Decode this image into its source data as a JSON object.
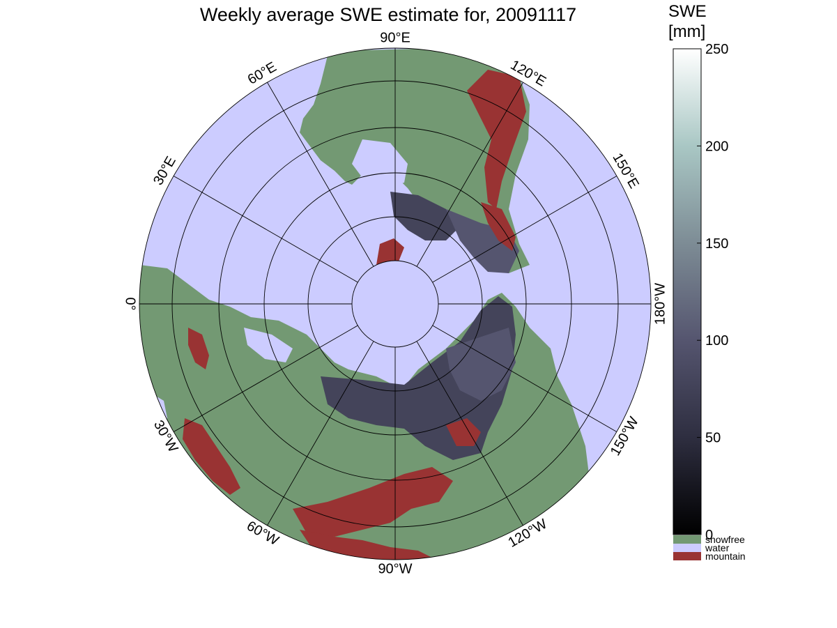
{
  "title": "Weekly average SWE estimate for, 20091117",
  "colorbar": {
    "title_line1": "SWE",
    "title_line2": "[mm]",
    "ticks": [
      "0",
      "50",
      "100",
      "150",
      "200",
      "250"
    ],
    "tick_values": [
      0,
      50,
      100,
      150,
      200,
      250
    ],
    "range": [
      0,
      250
    ],
    "gradient_colors": [
      "#000000",
      "#2e2e40",
      "#55556f",
      "#7d8c95",
      "#a9c7c4",
      "#ffffff"
    ]
  },
  "legend": [
    {
      "label": "snowfree",
      "color": "#739973"
    },
    {
      "label": "water",
      "color": "#ccccff"
    },
    {
      "label": "mountain",
      "color": "#993333"
    }
  ],
  "longitude_labels": [
    {
      "text": "90°W",
      "lon_deg": -90
    },
    {
      "text": "120°W",
      "lon_deg": -120
    },
    {
      "text": "150°W",
      "lon_deg": -150
    },
    {
      "text": "180°W",
      "lon_deg": 180
    },
    {
      "text": "150°E",
      "lon_deg": 150
    },
    {
      "text": "120°E",
      "lon_deg": 120
    },
    {
      "text": "90°E",
      "lon_deg": 90
    },
    {
      "text": "60°E",
      "lon_deg": 60
    },
    {
      "text": "30°E",
      "lon_deg": 30
    },
    {
      "text": "0°",
      "lon_deg": 0
    },
    {
      "text": "30°W",
      "lon_deg": -30
    },
    {
      "text": "60°W",
      "lon_deg": -60
    }
  ],
  "map": {
    "projection": "north polar stereographic",
    "ocean_color": "#ccccff",
    "land_color": "#739973",
    "mountain_color": "#993333",
    "snow_color": "#44445a"
  }
}
